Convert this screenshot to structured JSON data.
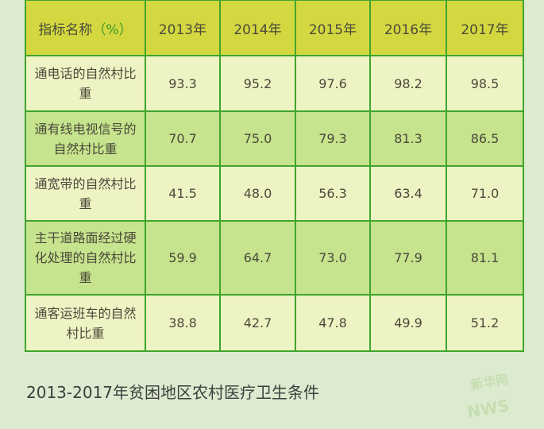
{
  "table": {
    "header": {
      "name_label": "指标名称",
      "unit": "（%）",
      "years": [
        "2013年",
        "2014年",
        "2015年",
        "2016年",
        "2017年"
      ]
    },
    "rows": [
      {
        "name": "通电话的自然村比重",
        "values": [
          "93.3",
          "95.2",
          "97.6",
          "98.2",
          "98.5"
        ]
      },
      {
        "name": "通有线电视信号的自然村比重",
        "values": [
          "70.7",
          "75.0",
          "79.3",
          "81.3",
          "86.5"
        ]
      },
      {
        "name": "通宽带的自然村比重",
        "values": [
          "41.5",
          "48.0",
          "56.3",
          "63.4",
          "71.0"
        ]
      },
      {
        "name": "主干道路面经过硬化处理的自然村比重",
        "values": [
          "59.9",
          "64.7",
          "73.0",
          "77.9",
          "81.1"
        ]
      },
      {
        "name": "通客运班车的自然村比重",
        "values": [
          "38.8",
          "42.7",
          "47.8",
          "49.9",
          "51.2"
        ]
      }
    ]
  },
  "caption": "2013-2017年贫困地区农村医疗卫生条件",
  "watermark": {
    "text": "新华网",
    "letters": "NWS"
  },
  "colors": {
    "header": "#d4d840",
    "row_light": "#eef3c4",
    "row_dark": "#c6e38d",
    "border": "#3fa52c",
    "background": "#dcebcf"
  }
}
